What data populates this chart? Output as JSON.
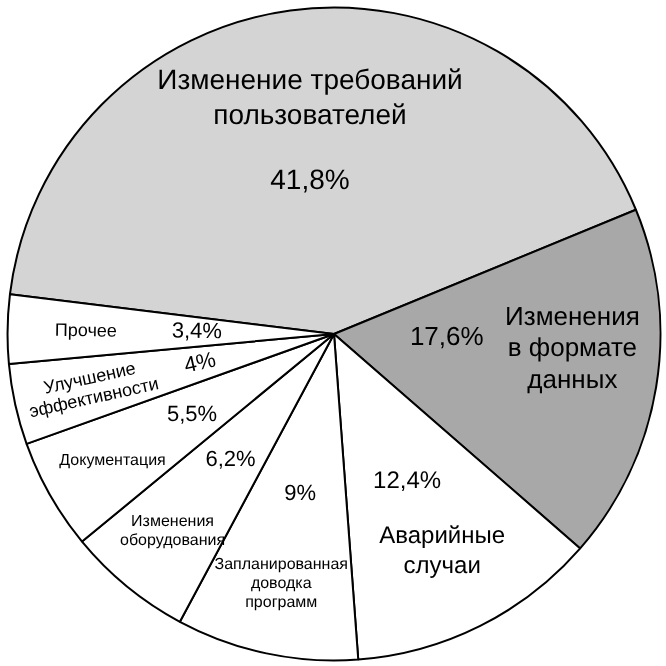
{
  "chart_data": {
    "type": "pie",
    "categories": [
      "Изменение требований пользователей",
      "Изменения в формате данных",
      "Аварийные случаи",
      "Запланированная доводка программ",
      "Изменения оборудования",
      "Документация",
      "Улучшение эффективности",
      "Прочее"
    ],
    "values": [
      41.8,
      17.6,
      12.4,
      9,
      6.2,
      5.5,
      4,
      3.4
    ],
    "value_labels": [
      "41,8%",
      "17,6%",
      "12,4%",
      "9%",
      "6,2%",
      "5,5%",
      "4%",
      "3,4%"
    ],
    "colors": [
      "#d4d4d4",
      "#a8a8a8",
      "#ffffff",
      "#ffffff",
      "#ffffff",
      "#ffffff",
      "#ffffff",
      "#ffffff"
    ]
  }
}
